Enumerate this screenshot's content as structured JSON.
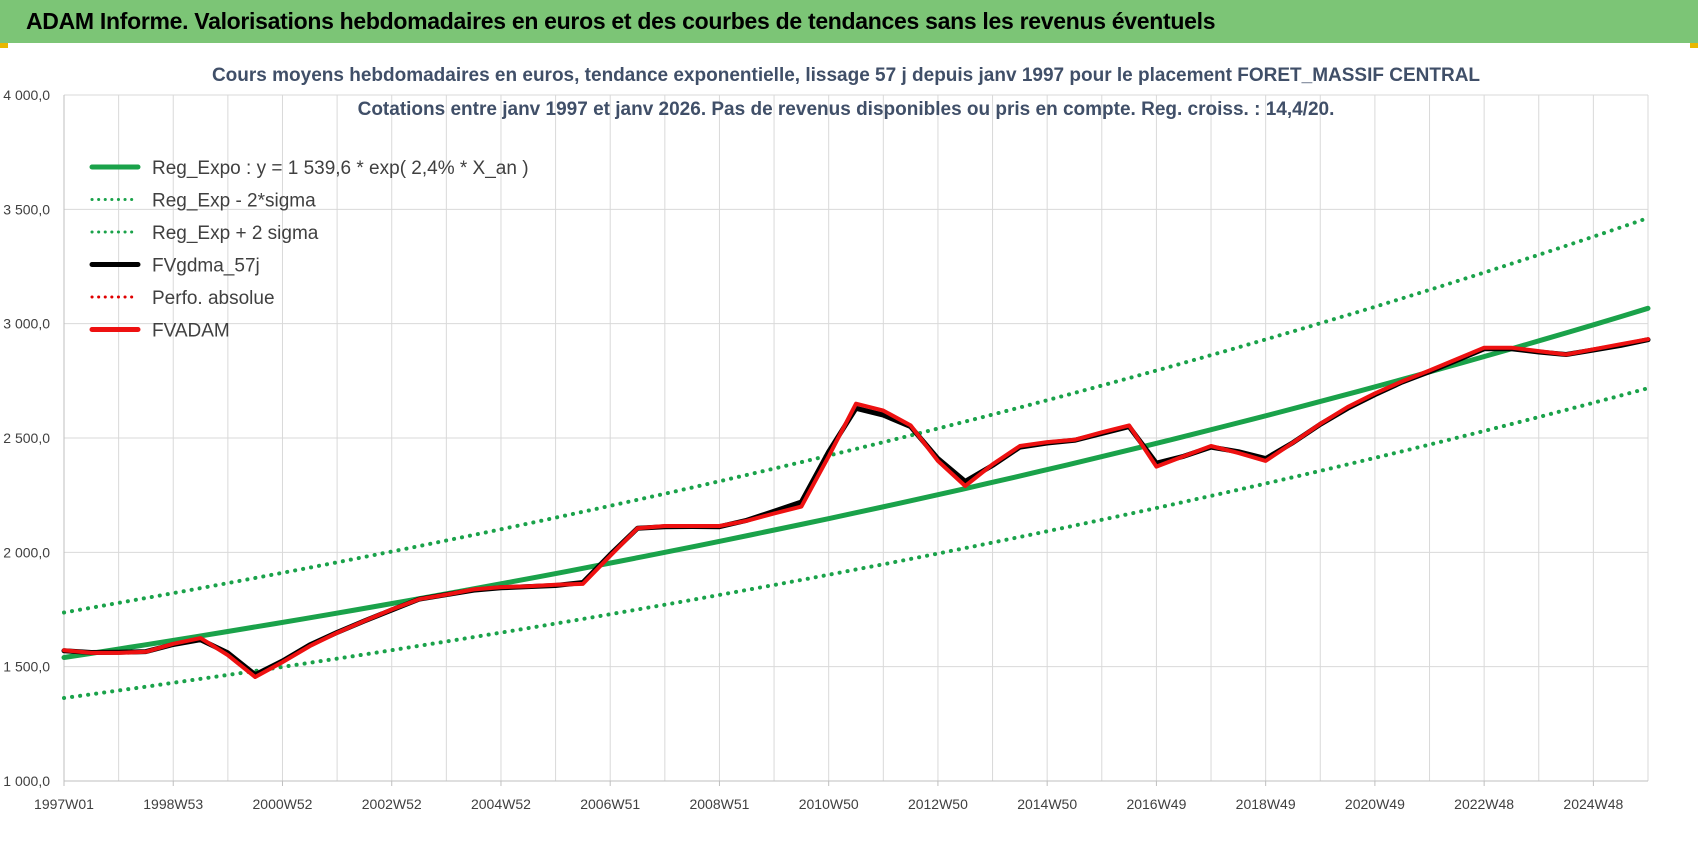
{
  "banner": {
    "title": "ADAM Informe. Valorisations hebdomadaires en euros et des courbes de tendances sans les revenus éventuels"
  },
  "colors": {
    "banner_bg": "#7cc576",
    "trend": "#1aa24a",
    "band": "#1aa24a",
    "fvgdma": "#000000",
    "perfo": "#e00000",
    "fvadam": "#ee1111",
    "grid": "#d9d9d9"
  },
  "chart_data": {
    "type": "line",
    "title": "Cours moyens hebdomadaires en euros, tendance exponentielle, lissage 57 j depuis janv 1997  pour le placement FORET_MASSIF CENTRAL",
    "subtitle": "Cotations entre janv 1997 et janv 2026. Pas de revenus disponibles ou pris en compte. Reg. croiss. : 14,4/20.",
    "xlabel": "",
    "ylabel": "",
    "x_range": [
      1997.0,
      2026.0
    ],
    "ylim": [
      1000,
      4000
    ],
    "y_ticks": [
      1000,
      1500,
      2000,
      2500,
      3000,
      3500,
      4000
    ],
    "y_tick_labels": [
      "1 000,0",
      "1 500,0",
      "2 000,0",
      "2 500,0",
      "3 000,0",
      "3 500,0",
      "4 000,0"
    ],
    "x_ticks": [
      1997.0,
      1999.0,
      2001.0,
      2003.0,
      2005.0,
      2007.0,
      2009.0,
      2011.0,
      2013.0,
      2015.0,
      2017.0,
      2019.0,
      2021.0,
      2023.0,
      2025.0
    ],
    "x_tick_labels": [
      "1997W01",
      "1998W53",
      "2000W52",
      "2002W52",
      "2004W52",
      "2006W51",
      "2008W51",
      "2010W50",
      "2012W50",
      "2014W50",
      "2016W49",
      "2018W49",
      "2020W49",
      "2022W48",
      "2024W48"
    ],
    "grid": true,
    "legend_position": "top-left",
    "legend": [
      {
        "name": "Reg_Expo : y = 1 539,6 * exp( 2,4% *  X_an )",
        "style": "solid",
        "color": "#1aa24a"
      },
      {
        "name": "Reg_Exp - 2*sigma",
        "style": "dotted",
        "color": "#1aa24a"
      },
      {
        "name": "Reg_Exp + 2 sigma",
        "style": "dotted",
        "color": "#1aa24a"
      },
      {
        "name": "FVgdma_57j",
        "style": "solid",
        "color": "#000000"
      },
      {
        "name": "Perfo. absolue",
        "style": "dotted",
        "color": "#e00000"
      },
      {
        "name": "FVADAM",
        "style": "solid",
        "color": "#ee1111"
      }
    ],
    "series": [
      {
        "name": "Reg_Expo : y = 1 539,6 * exp( 2,4% *  X_an )",
        "x": [
          1997.0,
          2026.0
        ],
        "y": [
          1540,
          3067
        ]
      },
      {
        "name": "Reg_Exp - 2*sigma",
        "x": [
          1997.0,
          2026.0
        ],
        "y": [
          1363,
          2718
        ]
      },
      {
        "name": "Reg_Exp + 2 sigma",
        "x": [
          1997.0,
          2026.0
        ],
        "y": [
          1737,
          3462
        ]
      },
      {
        "name": "FVgdma_57j",
        "x": [
          1997.0,
          1997.5,
          1998.0,
          1998.5,
          1999.0,
          1999.5,
          2000.0,
          2000.5,
          2001.0,
          2001.5,
          2002.0,
          2002.5,
          2003.0,
          2003.5,
          2004.0,
          2004.5,
          2005.0,
          2005.5,
          2006.0,
          2006.5,
          2007.0,
          2007.5,
          2008.0,
          2008.5,
          2009.0,
          2009.5,
          2010.0,
          2010.5,
          2011.0,
          2011.5,
          2012.0,
          2012.5,
          2013.0,
          2013.5,
          2014.0,
          2014.5,
          2015.0,
          2015.5,
          2016.0,
          2016.5,
          2017.0,
          2017.5,
          2018.0,
          2018.5,
          2019.0,
          2019.5,
          2020.0,
          2020.5,
          2021.0,
          2021.5,
          2022.0,
          2022.5,
          2023.0,
          2023.5,
          2024.0,
          2024.5,
          2025.0,
          2025.5,
          2026.0
        ],
        "y": [
          1570,
          1562,
          1563,
          1566,
          1597,
          1618,
          1560,
          1465,
          1525,
          1595,
          1650,
          1700,
          1748,
          1795,
          1815,
          1835,
          1845,
          1850,
          1855,
          1868,
          1990,
          2105,
          2112,
          2113,
          2112,
          2140,
          2180,
          2220,
          2440,
          2630,
          2600,
          2550,
          2410,
          2310,
          2380,
          2460,
          2478,
          2490,
          2520,
          2550,
          2390,
          2420,
          2460,
          2440,
          2410,
          2480,
          2560,
          2630,
          2690,
          2745,
          2790,
          2840,
          2890,
          2890,
          2876,
          2865,
          2885,
          2905,
          2930
        ]
      },
      {
        "name": "FVADAM",
        "x": [
          1997.0,
          1997.5,
          1998.0,
          1998.5,
          1999.0,
          1999.5,
          2000.0,
          2000.5,
          2001.0,
          2001.5,
          2002.0,
          2002.5,
          2003.0,
          2003.5,
          2004.0,
          2004.5,
          2005.0,
          2005.5,
          2006.0,
          2006.5,
          2007.0,
          2007.5,
          2008.0,
          2008.5,
          2009.0,
          2009.5,
          2010.0,
          2010.5,
          2011.0,
          2011.5,
          2012.0,
          2012.5,
          2013.0,
          2013.5,
          2014.0,
          2014.5,
          2015.0,
          2015.5,
          2016.0,
          2016.5,
          2017.0,
          2017.5,
          2018.0,
          2018.5,
          2019.0,
          2019.5,
          2020.0,
          2020.5,
          2021.0,
          2021.5,
          2022.0,
          2022.5,
          2023.0,
          2023.5,
          2024.0,
          2024.5,
          2025.0,
          2025.5,
          2026.0
        ],
        "y": [
          1572,
          1560,
          1560,
          1565,
          1600,
          1625,
          1550,
          1455,
          1520,
          1590,
          1648,
          1700,
          1750,
          1795,
          1815,
          1838,
          1848,
          1852,
          1858,
          1862,
          1985,
          2105,
          2115,
          2115,
          2115,
          2138,
          2170,
          2200,
          2420,
          2650,
          2620,
          2555,
          2400,
          2290,
          2385,
          2465,
          2482,
          2492,
          2525,
          2555,
          2375,
          2420,
          2465,
          2435,
          2400,
          2480,
          2562,
          2635,
          2695,
          2748,
          2795,
          2845,
          2895,
          2895,
          2880,
          2865,
          2888,
          2910,
          2932
        ]
      }
    ]
  }
}
